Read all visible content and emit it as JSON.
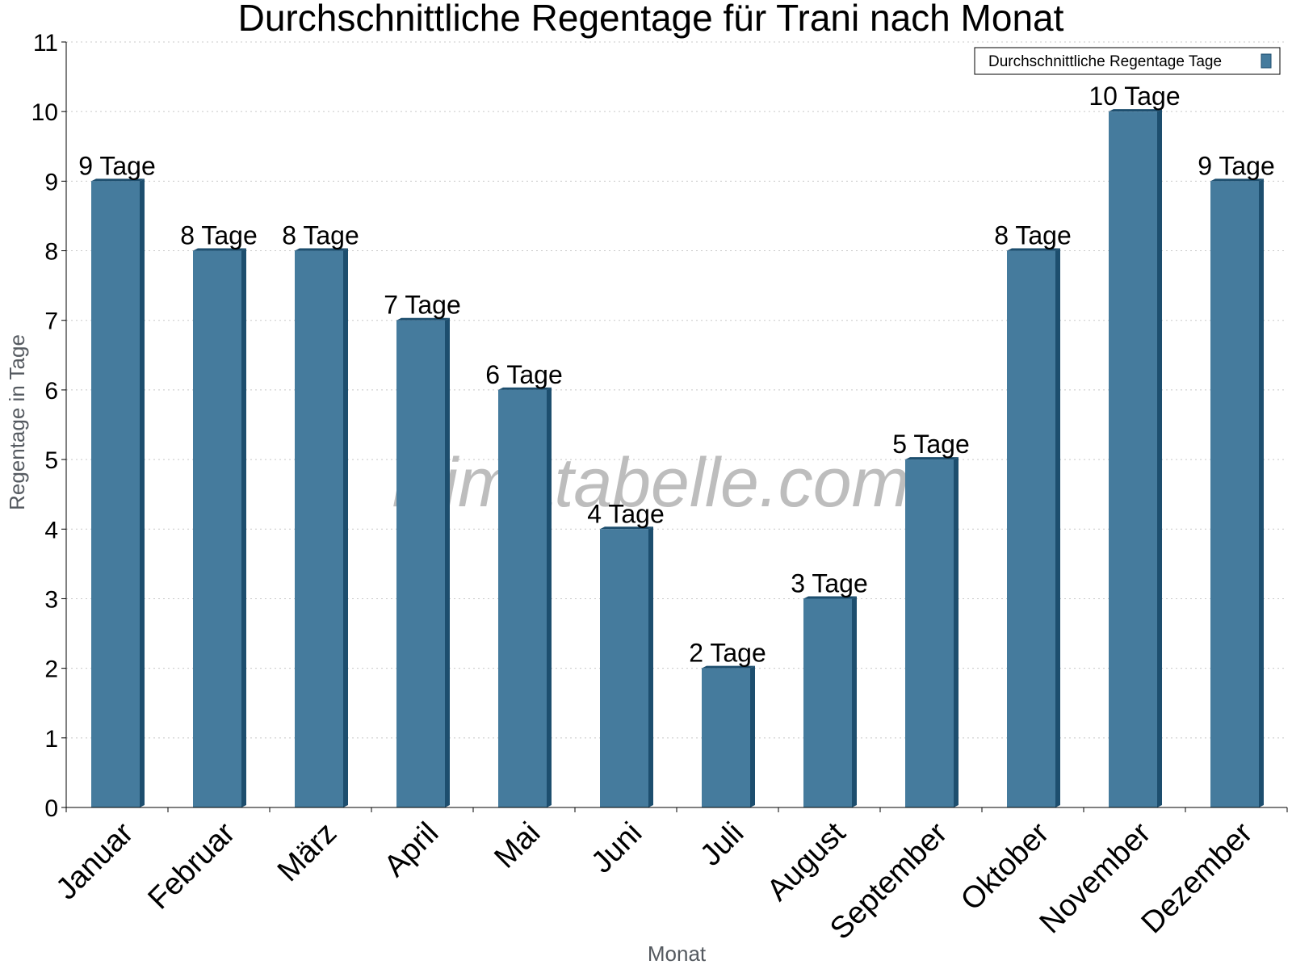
{
  "chart_data": {
    "type": "bar",
    "title": "Durchschnittliche Regentage für Trani nach Monat",
    "xlabel": "Monat",
    "ylabel": "Regentage in Tage",
    "ylim": [
      0,
      11
    ],
    "yticks": [
      "0",
      "1",
      "2",
      "3",
      "4",
      "5",
      "6",
      "7",
      "8",
      "9",
      "10",
      "11"
    ],
    "grid": "horizontal dotted",
    "legend_position": "top-right",
    "categories": [
      "Januar",
      "Februar",
      "März",
      "April",
      "Mai",
      "Juni",
      "Juli",
      "August",
      "September",
      "Oktober",
      "November",
      "Dezember"
    ],
    "series": [
      {
        "name": "Durchschnittliche Regentage Tage",
        "values": [
          9,
          8,
          8,
          7,
          6,
          4,
          2,
          3,
          5,
          8,
          10,
          9
        ],
        "data_labels": [
          "9 Tage",
          "8 Tage",
          "8 Tage",
          "7 Tage",
          "6 Tage",
          "4 Tage",
          "2 Tage",
          "3 Tage",
          "5 Tage",
          "8 Tage",
          "10 Tage",
          "9 Tage"
        ],
        "color": "#457b9d",
        "side_color": "#1d4e6e"
      }
    ]
  },
  "watermark": "klimatabelle.com"
}
